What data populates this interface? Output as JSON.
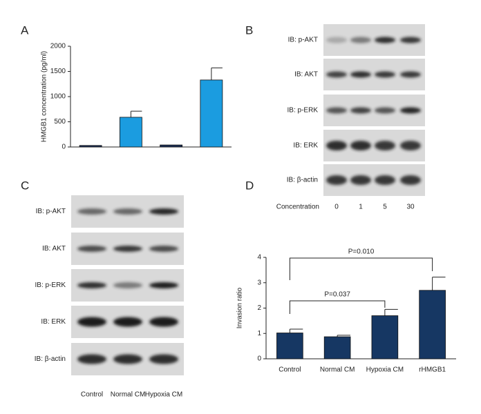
{
  "panels": {
    "a": "A",
    "b": "B",
    "c": "C",
    "d": "D"
  },
  "blot_b": {
    "rows": [
      "IB: p-AKT",
      "IB: AKT",
      "IB: p-ERK",
      "IB: ERK",
      "IB: β-actin"
    ],
    "lane_title": "Concentration",
    "lanes": [
      "0",
      "1",
      "5",
      "30"
    ]
  },
  "blot_c": {
    "rows": [
      "IB: p-AKT",
      "IB: AKT",
      "IB: p-ERK",
      "IB: ERK",
      "IB: β-actin"
    ],
    "lanes": [
      "Control",
      "Normal CM",
      "Hypoxia CM"
    ]
  },
  "chart_data": [
    {
      "type": "bar",
      "y_label": "HMGB1 concentration (pg/ml)",
      "categories": [
        null,
        null,
        null,
        null
      ],
      "values": [
        30,
        590,
        40,
        1330
      ],
      "errors": [
        null,
        120,
        null,
        240
      ],
      "colors": [
        "#1c2f55",
        "#1b9ce0",
        "#1c2f55",
        "#1b9ce0"
      ],
      "ylim": [
        0,
        2000
      ],
      "yticks": [
        0,
        500,
        1000,
        1500,
        2000
      ]
    },
    {
      "type": "bar",
      "y_label": "Invasion ratio",
      "categories": [
        "Control",
        "Normal CM",
        "Hypoxia CM",
        "rHMGB1"
      ],
      "values": [
        1.02,
        0.87,
        1.7,
        2.7
      ],
      "errors": [
        0.15,
        0.06,
        0.25,
        0.52
      ],
      "color": "#163763",
      "ylim": [
        0,
        4
      ],
      "yticks": [
        0,
        1,
        2,
        3,
        4
      ],
      "annotations": [
        "P=0.010",
        "P=0.037"
      ]
    }
  ]
}
